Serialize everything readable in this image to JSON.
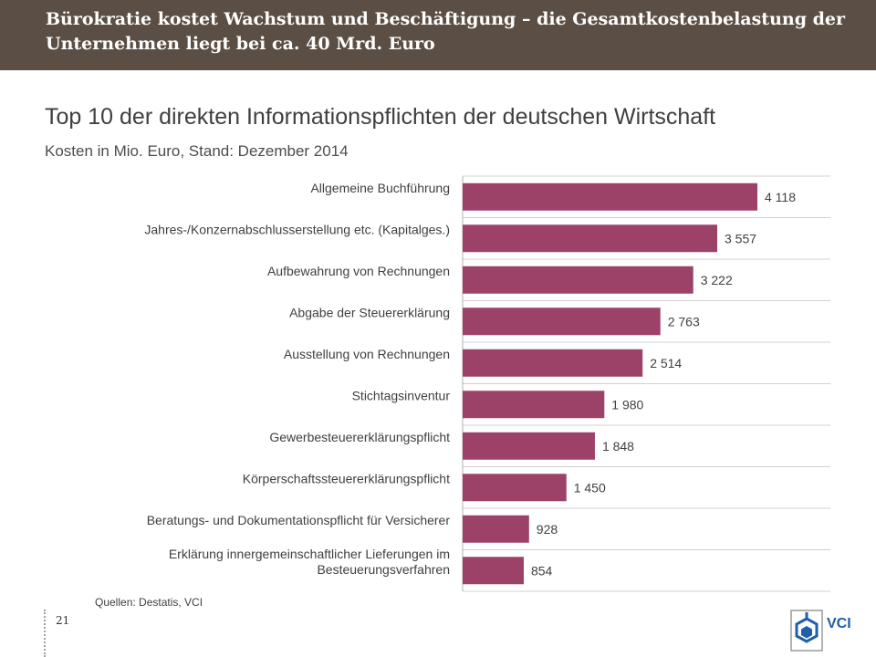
{
  "header": {
    "title": "Bürokratie kostet Wachstum und Beschäftigung – die Gesamtkostenbelastung der Unternehmen liegt bei ca. 40 Mrd. Euro"
  },
  "colors": {
    "header_bg": "#5b4f45",
    "bar": "#9c4268",
    "text": "#404040"
  },
  "chart_data": {
    "type": "bar",
    "orientation": "horizontal",
    "title": "Top 10 der direkten Informationspflichten der deutschen Wirtschaft",
    "subtitle": "Kosten in Mio. Euro, Stand: Dezember 2014",
    "categories": [
      [
        "Allgemeine Buchführung"
      ],
      [
        "Jahres-/Konzernabschlusserstellung etc. (Kapitalges.)"
      ],
      [
        "Aufbewahrung von Rechnungen"
      ],
      [
        "Abgabe der Steuererklärung"
      ],
      [
        "Ausstellung von Rechnungen"
      ],
      [
        "Stichtagsinventur"
      ],
      [
        "Gewerbesteuererklärungspflicht"
      ],
      [
        "Körperschaftssteuererklärungspflicht"
      ],
      [
        "Beratungs- und Dokumentationspflicht für Versicherer"
      ],
      [
        "Erklärung innergemeinschaftlicher Lieferungen im",
        "Besteuerungsverfahren"
      ]
    ],
    "values": [
      4118,
      3557,
      3222,
      2763,
      2514,
      1980,
      1848,
      1450,
      928,
      854
    ],
    "data_labels": [
      "4 118",
      "3 557",
      "3 222",
      "2 763",
      "2 514",
      "1 980",
      "1 848",
      "1 450",
      "928",
      "854"
    ],
    "xlim": [
      0,
      4500
    ],
    "grid": true,
    "legend": "none"
  },
  "footer": {
    "source": "Quellen: Destatis, VCI",
    "page_number": "21",
    "logo_text": "VCI"
  }
}
